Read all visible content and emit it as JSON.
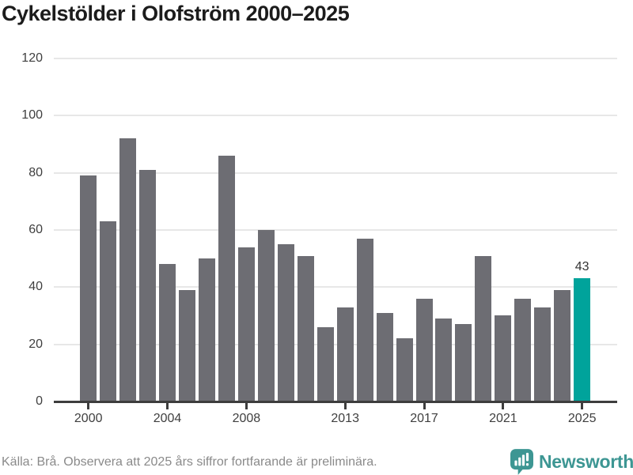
{
  "title": "Cykelstölder i Olofström 2000–2025",
  "chart_data": {
    "type": "bar",
    "title": "Cykelstölder i Olofström 2000–2025",
    "categories": [
      2000,
      2001,
      2002,
      2003,
      2004,
      2005,
      2006,
      2007,
      2008,
      2009,
      2010,
      2011,
      2012,
      2013,
      2014,
      2015,
      2016,
      2017,
      2018,
      2019,
      2020,
      2021,
      2022,
      2023,
      2024,
      2025
    ],
    "values": [
      79,
      63,
      92,
      81,
      48,
      39,
      50,
      86,
      54,
      60,
      55,
      51,
      26,
      33,
      57,
      31,
      22,
      36,
      29,
      27,
      51,
      30,
      36,
      33,
      39,
      43
    ],
    "xlabel": "",
    "ylabel": "",
    "ylim": [
      0,
      120
    ],
    "yticks": [
      0,
      20,
      40,
      60,
      80,
      100,
      120
    ],
    "xticks": [
      2000,
      2004,
      2008,
      2013,
      2017,
      2021,
      2025
    ],
    "grid": "horizontal",
    "legend": "none",
    "highlight": {
      "category": 2025,
      "value": 43,
      "label": "43"
    }
  },
  "colors": {
    "bar": "#6d6d73",
    "highlight": "#00a39b",
    "grid": "#e7e7e7",
    "axis": "#3d3d3d",
    "tick_label": "#3f3f3f",
    "value_label": "#333333",
    "title": "#1c1c1c",
    "source_text": "#8a8a8a",
    "brand": "#3d9693"
  },
  "footer": {
    "source_text": "Källa: Brå. Observera att 2025 års siffror fortfarande är preliminära.",
    "brand_name": "Newsworthy"
  }
}
